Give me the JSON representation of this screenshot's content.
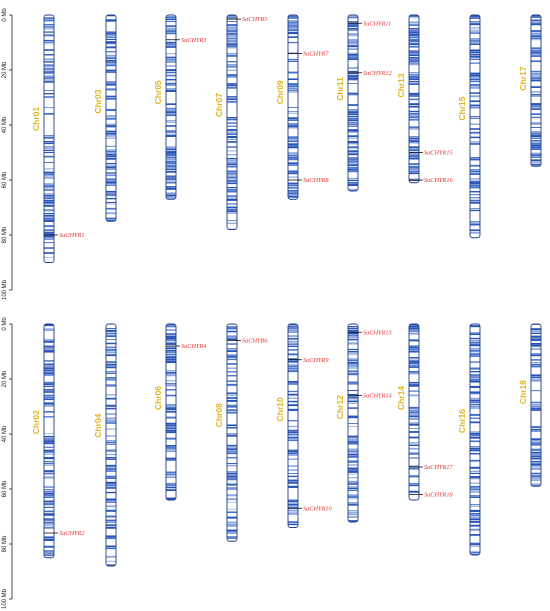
{
  "colors": {
    "band": "#2b55b8",
    "band_light": "#ffffff",
    "outline": "#1f3f86",
    "chr_label": "#e0b41b",
    "gene_label": "#e53030",
    "axis": "#222222"
  },
  "axis": {
    "unit": "Mb",
    "ticks": [
      0,
      20,
      40,
      60,
      80,
      100
    ],
    "tick_labels": [
      "0 Mb",
      "20 Mb",
      "40 Mb",
      "60 Mb",
      "80 Mb",
      "100 Mb"
    ]
  },
  "panels": [
    {
      "chromosomes": [
        {
          "name": "Chr01",
          "length": 90,
          "genes": [
            {
              "name": "SaCHYR1",
              "pos": 80
            }
          ]
        },
        {
          "name": "Chr03",
          "length": 75,
          "genes": []
        },
        {
          "name": "Chr05",
          "length": 67,
          "genes": [
            {
              "name": "SaCHYR3",
              "pos": 9
            }
          ]
        },
        {
          "name": "Chr07",
          "length": 78,
          "genes": [
            {
              "name": "SaCHYR5",
              "pos": 1.5
            }
          ]
        },
        {
          "name": "Chr09",
          "length": 67,
          "genes": [
            {
              "name": "SaCHYR7",
              "pos": 14
            },
            {
              "name": "SaCHYR8",
              "pos": 60
            }
          ]
        },
        {
          "name": "Chr11",
          "length": 64,
          "genes": [
            {
              "name": "SaCHYR11",
              "pos": 3
            },
            {
              "name": "SaCHYR12",
              "pos": 21
            }
          ]
        },
        {
          "name": "Chr13",
          "length": 61,
          "genes": [
            {
              "name": "SaCHYR15",
              "pos": 50
            },
            {
              "name": "SaCHYR16",
              "pos": 60
            }
          ]
        },
        {
          "name": "Chr15",
          "length": 81,
          "genes": []
        },
        {
          "name": "Chr17",
          "length": 55,
          "genes": []
        }
      ]
    },
    {
      "chromosomes": [
        {
          "name": "Chr02",
          "length": 85,
          "genes": [
            {
              "name": "SaCHYR2",
              "pos": 76
            }
          ]
        },
        {
          "name": "Chr04",
          "length": 88,
          "genes": []
        },
        {
          "name": "Chr06",
          "length": 64,
          "genes": [
            {
              "name": "SaCHYR4",
              "pos": 8
            }
          ]
        },
        {
          "name": "Chr08",
          "length": 79,
          "genes": [
            {
              "name": "SaCHYR6",
              "pos": 6
            }
          ]
        },
        {
          "name": "Chr10",
          "length": 74,
          "genes": [
            {
              "name": "SaCHYR9",
              "pos": 13
            },
            {
              "name": "SaCHYR10",
              "pos": 67
            }
          ]
        },
        {
          "name": "Chr12",
          "length": 72,
          "genes": [
            {
              "name": "SaCHYR13",
              "pos": 3
            },
            {
              "name": "SaCHYR14",
              "pos": 26
            }
          ]
        },
        {
          "name": "Chr14",
          "length": 64,
          "genes": [
            {
              "name": "SaCHYR17",
              "pos": 52
            },
            {
              "name": "SaCHYR18",
              "pos": 62
            }
          ]
        },
        {
          "name": "Chr16",
          "length": 84,
          "genes": []
        },
        {
          "name": "Chr18",
          "length": 59,
          "genes": []
        }
      ]
    }
  ]
}
